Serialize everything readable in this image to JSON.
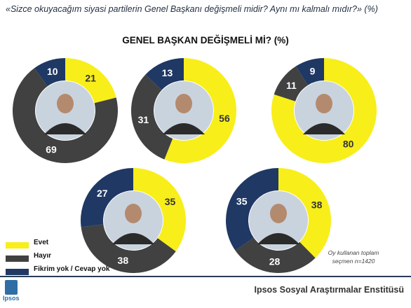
{
  "question": "«Sizce okuyacağım siyasi partilerin Genel Başkanı değişmeli midir? Aynı mı kalmalı mıdır?» (%)",
  "colors": {
    "evet": "#f8ee1a",
    "hayir": "#414141",
    "fikrim_yok": "#1f3864"
  },
  "legend": [
    {
      "label": "Evet",
      "color": "#f8ee1a"
    },
    {
      "label": "Hayır",
      "color": "#414141"
    },
    {
      "label": "Fikrim yok / Cevap yok",
      "color": "#1f3864"
    }
  ],
  "note": {
    "line1": "Oy kullanan toplam",
    "line2": "seçmen n=1420"
  },
  "footer": "Ipsos Sosyal Araştırmalar Enstitüsü",
  "logo_text": "Ipsos",
  "chart_data": {
    "type": "pie",
    "title": "GENEL BAŞKAN DEĞİŞMELİ Mİ? (%)",
    "categories": [
      "Evet",
      "Hayır",
      "Fikrim yok / Cevap yok"
    ],
    "charts": [
      {
        "values": [
          21,
          69,
          10
        ]
      },
      {
        "values": [
          56,
          31,
          13
        ]
      },
      {
        "values": [
          80,
          11,
          9
        ]
      },
      {
        "values": [
          35,
          38,
          27
        ]
      },
      {
        "values": [
          38,
          28,
          35
        ]
      }
    ]
  }
}
